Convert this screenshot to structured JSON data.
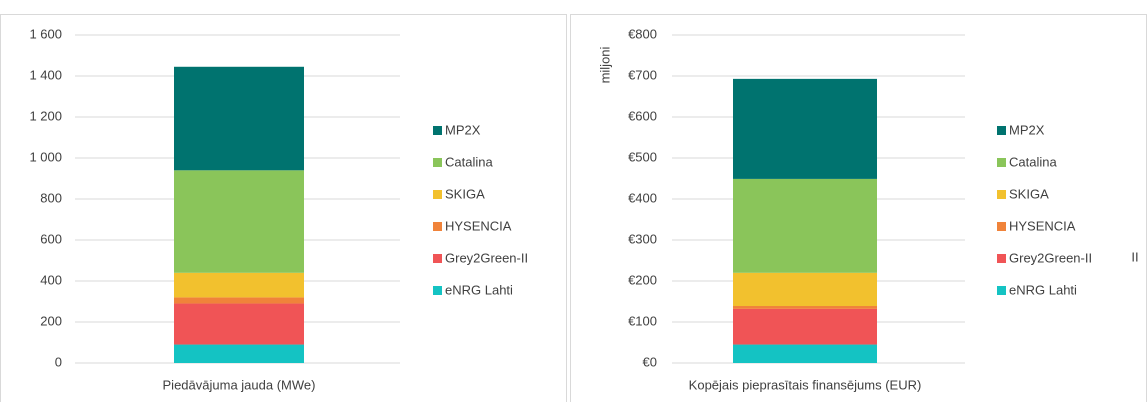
{
  "chart_data": [
    {
      "type": "bar",
      "stacked": true,
      "legend": "right",
      "grid": true,
      "categories": [
        "Piedāvājuma jauda (MWe)"
      ],
      "ylim": [
        0,
        1600
      ],
      "yticks": [
        0,
        200,
        400,
        600,
        800,
        {
          "value": 1000,
          "label": "1 000"
        },
        {
          "value": 1200,
          "label": "1 200"
        },
        {
          "value": 1400,
          "label": "1 400"
        },
        {
          "value": 1600,
          "label": "1 600"
        }
      ],
      "series": [
        {
          "name": "eNRG Lahti",
          "color": "#14c3c3",
          "values": [
            90
          ]
        },
        {
          "name": "Grey2Green-II",
          "color": "#f05456",
          "values": [
            200
          ]
        },
        {
          "name": "HYSENCIA",
          "color": "#f0833a",
          "values": [
            30
          ]
        },
        {
          "name": "SKIGA",
          "color": "#f2c12e",
          "values": [
            120
          ]
        },
        {
          "name": "Catalina",
          "color": "#8ac55a",
          "values": [
            500
          ]
        },
        {
          "name": "MP2X",
          "color": "#00736f",
          "values": [
            505
          ]
        }
      ]
    },
    {
      "type": "bar",
      "stacked": true,
      "legend": "right",
      "grid": true,
      "categories": [
        "Kopējais pieprasītais finansējums (EUR)"
      ],
      "ylabel": "miljoni",
      "annotation": "II",
      "ylim": [
        0,
        800
      ],
      "yticks": [
        {
          "value": 0,
          "label": "€0"
        },
        {
          "value": 100,
          "label": "€100"
        },
        {
          "value": 200,
          "label": "€200"
        },
        {
          "value": 300,
          "label": "€300"
        },
        {
          "value": 400,
          "label": "€400"
        },
        {
          "value": 500,
          "label": "€500"
        },
        {
          "value": 600,
          "label": "€600"
        },
        {
          "value": 700,
          "label": "€700"
        },
        {
          "value": 800,
          "label": "€800"
        }
      ],
      "series": [
        {
          "name": "eNRG Lahti",
          "color": "#14c3c3",
          "values": [
            45
          ]
        },
        {
          "name": "Grey2Green-II",
          "color": "#f05456",
          "values": [
            87
          ]
        },
        {
          "name": "HYSENCIA",
          "color": "#f0833a",
          "values": [
            7
          ]
        },
        {
          "name": "SKIGA",
          "color": "#f2c12e",
          "values": [
            81
          ]
        },
        {
          "name": "Catalina",
          "color": "#8ac55a",
          "values": [
            229
          ]
        },
        {
          "name": "MP2X",
          "color": "#00736f",
          "values": [
            244
          ]
        }
      ]
    }
  ]
}
